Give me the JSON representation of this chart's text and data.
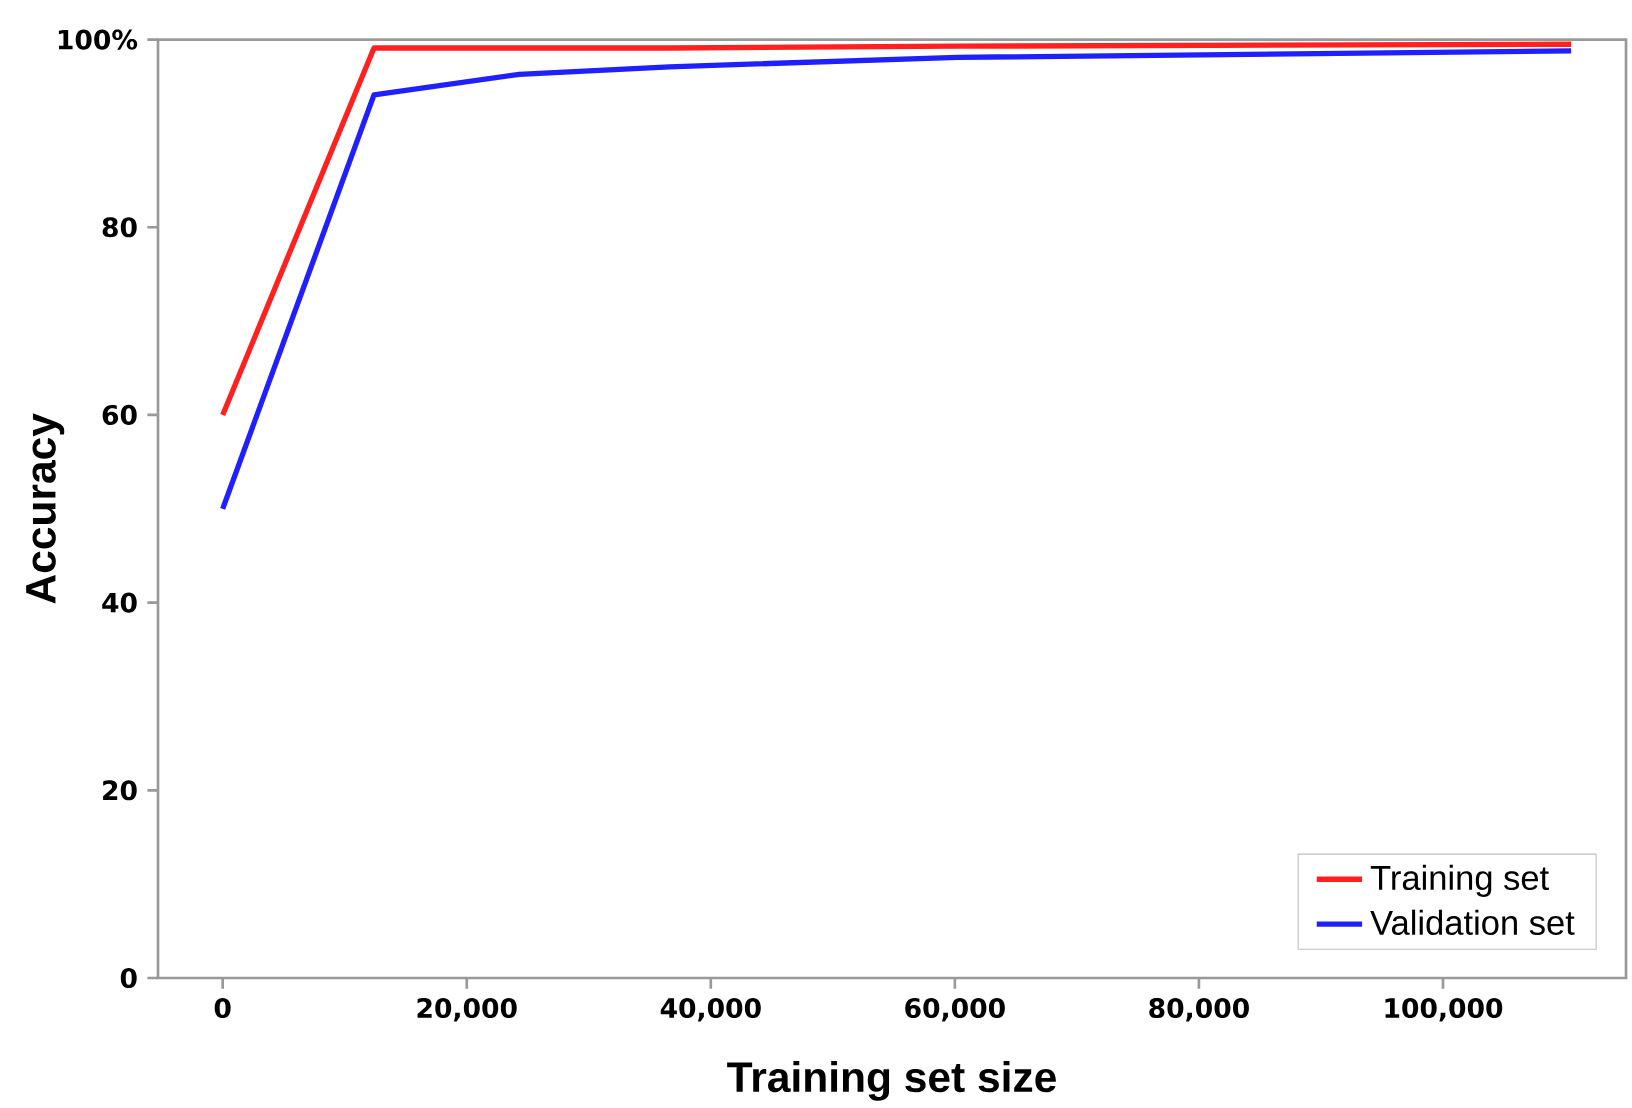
{
  "chart_data": {
    "type": "line",
    "xlabel": "Training set size",
    "ylabel": "Accuracy",
    "xlim": [
      -5300,
      115000
    ],
    "ylim": [
      0,
      100
    ],
    "xticks": [
      0,
      {
        "value": 20000,
        "label": "20,000"
      },
      {
        "value": 40000,
        "label": "40,000"
      },
      {
        "value": 60000,
        "label": "60,000"
      },
      {
        "value": 80000,
        "label": "80,000"
      },
      {
        "value": 100000,
        "label": "100,000"
      }
    ],
    "yticks": [
      0,
      20,
      40,
      60,
      80,
      {
        "value": 100,
        "label": "100%"
      }
    ],
    "legend": "bottom right",
    "grid": false,
    "series": [
      {
        "name": "Training set",
        "color": "#ff2020",
        "x": [
          0,
          12400,
          24300,
          36600,
          60200,
          110500
        ],
        "values": [
          60,
          99.1,
          99.1,
          99.1,
          99.3,
          99.5
        ]
      },
      {
        "name": "Validation set",
        "color": "#2020ff",
        "x": [
          0,
          12400,
          24300,
          36600,
          60200,
          110500
        ],
        "values": [
          50,
          94.1,
          96.3,
          97.1,
          98.1,
          98.8
        ]
      }
    ]
  }
}
